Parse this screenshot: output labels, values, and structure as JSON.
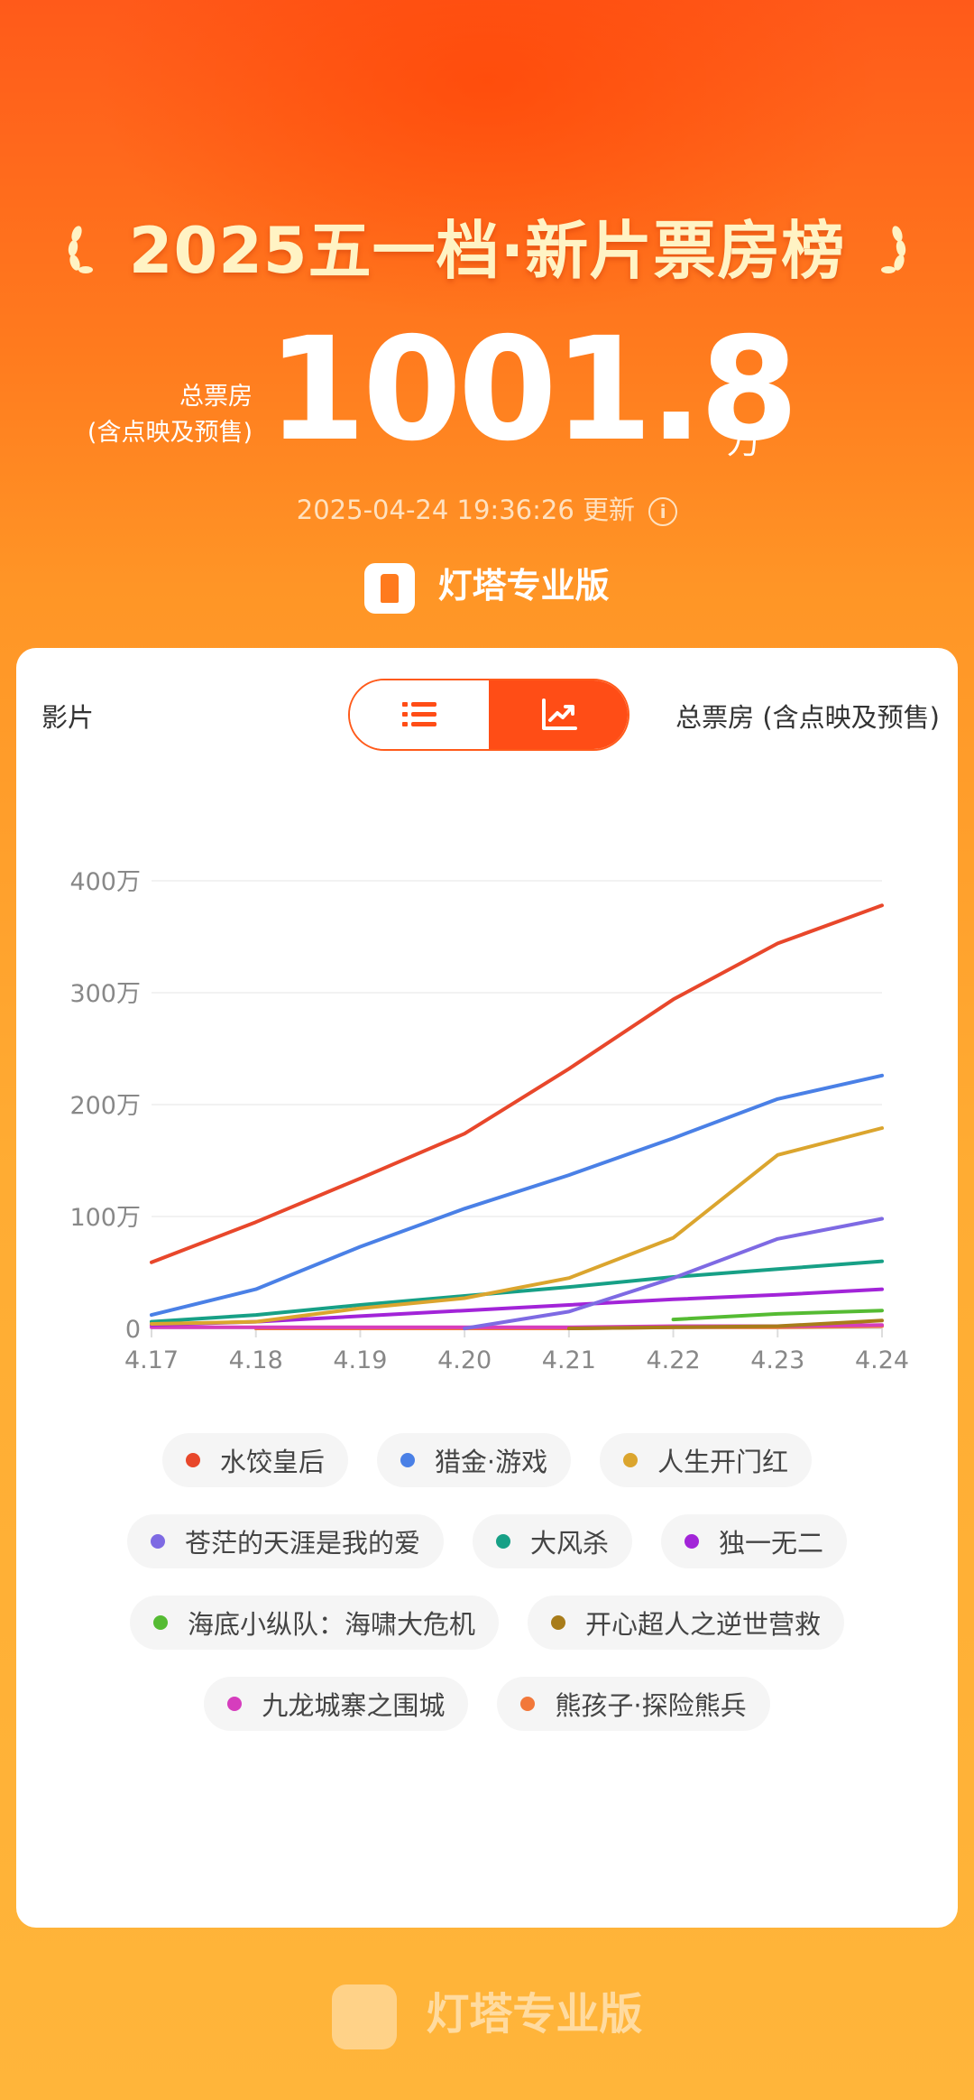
{
  "header": {
    "title": "2025五一档·新片票房榜",
    "total_label_1": "总票房",
    "total_label_2": "(含点映及预售)",
    "total_value": "1001.8",
    "total_unit": "万",
    "update_time": "2025-04-24 19:36:26 更新",
    "brand": "灯塔专业版"
  },
  "card": {
    "left_label": "影片",
    "right_label": "总票房 (含点映及预售)"
  },
  "footer": {
    "brand": "灯塔专业版"
  },
  "colors": {
    "accent": "#ff4d16"
  },
  "chart_data": {
    "type": "line",
    "x": [
      "4.17",
      "4.18",
      "4.19",
      "4.20",
      "4.21",
      "4.22",
      "4.23",
      "4.24"
    ],
    "ylim": [
      0,
      400
    ],
    "y_ticks": [
      0,
      100,
      200,
      300,
      400
    ],
    "y_tick_labels": [
      "0",
      "100万",
      "200万",
      "300万",
      "400万"
    ],
    "grid": true,
    "series": [
      {
        "name": "水饺皇后",
        "color": "#e8472b",
        "values": [
          59,
          95,
          134,
          174,
          232,
          294,
          344,
          378
        ]
      },
      {
        "name": "猎金·游戏",
        "color": "#4a80e6",
        "values": [
          12,
          35,
          73,
          107,
          137,
          170,
          205,
          226
        ]
      },
      {
        "name": "人生开门红",
        "color": "#dba52e",
        "values": [
          4,
          6,
          18,
          27,
          45,
          81,
          155,
          179
        ]
      },
      {
        "name": "苍茫的天涯是我的爱",
        "color": "#7e6ae3",
        "values": [
          null,
          null,
          null,
          0,
          15,
          45,
          80,
          98
        ]
      },
      {
        "name": "大风杀",
        "color": "#17a086",
        "values": [
          6,
          12,
          21,
          29,
          37,
          46,
          53,
          60
        ]
      },
      {
        "name": "独一无二",
        "color": "#a224d8",
        "values": [
          3,
          6,
          11,
          16,
          21,
          26,
          30,
          35
        ]
      },
      {
        "name": "海底小纵队：海啸大危机",
        "color": "#55bb33",
        "values": [
          null,
          null,
          null,
          null,
          null,
          8,
          13,
          16
        ]
      },
      {
        "name": "开心超人之逆世营救",
        "color": "#a87c1a",
        "values": [
          null,
          null,
          null,
          null,
          0,
          1,
          2,
          7
        ]
      },
      {
        "name": "九龙城寨之围城",
        "color": "#d63dbd",
        "values": [
          1,
          1,
          1,
          1,
          1,
          2,
          2,
          3
        ]
      },
      {
        "name": "熊孩子·探险熊兵",
        "color": "#f2783a",
        "values": [
          null,
          0,
          0,
          0,
          0,
          1,
          1,
          2
        ]
      }
    ]
  }
}
